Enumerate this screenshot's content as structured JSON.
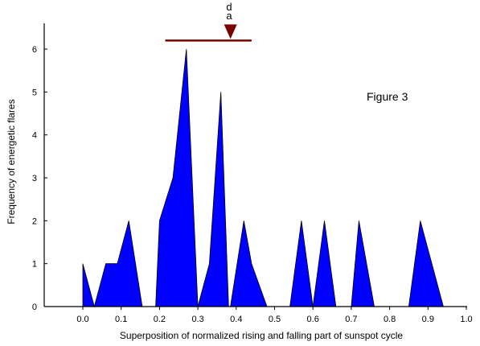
{
  "chart_data": {
    "type": "area",
    "title": "",
    "annotation": "Figure 3",
    "xlabel": "Superposition of normalized rising and falling part of sunspot cycle",
    "ylabel": "Frequency of energetic flares",
    "xlim": [
      -0.1,
      1.0
    ],
    "ylim": [
      0,
      6.6
    ],
    "xticks": [
      "0.0",
      "0.1",
      "0.2",
      "0.3",
      "0.4",
      "0.5",
      "0.6",
      "0.7",
      "0.8",
      "0.9",
      "1.0"
    ],
    "yticks": [
      "0",
      "1",
      "2",
      "3",
      "4",
      "5",
      "6"
    ],
    "grid": false,
    "series": [
      {
        "color": "#0000ff",
        "x": [
          0.0,
          0.0,
          0.03,
          0.06,
          0.09,
          0.12,
          0.155,
          0.19,
          0.2,
          0.235,
          0.27,
          0.3,
          0.33,
          0.36,
          0.38,
          0.385,
          0.42,
          0.44,
          0.48,
          0.5,
          0.54,
          0.57,
          0.6,
          0.63,
          0.66,
          0.7,
          0.72,
          0.76,
          0.8,
          0.85,
          0.88,
          0.94
        ],
        "y": [
          0,
          1,
          0,
          1,
          1,
          2,
          0,
          0,
          2,
          3,
          6,
          0,
          1,
          5,
          0,
          0,
          2,
          1,
          0,
          0,
          0,
          2,
          0,
          2,
          0,
          0,
          2,
          0,
          0,
          0,
          2,
          0
        ]
      }
    ],
    "marker": {
      "bar_x": [
        0.215,
        0.44
      ],
      "bar_y": 6.2,
      "arrow_x": 0.385,
      "bar_color": "#7a0000",
      "labels": [
        "d",
        "a"
      ]
    }
  }
}
